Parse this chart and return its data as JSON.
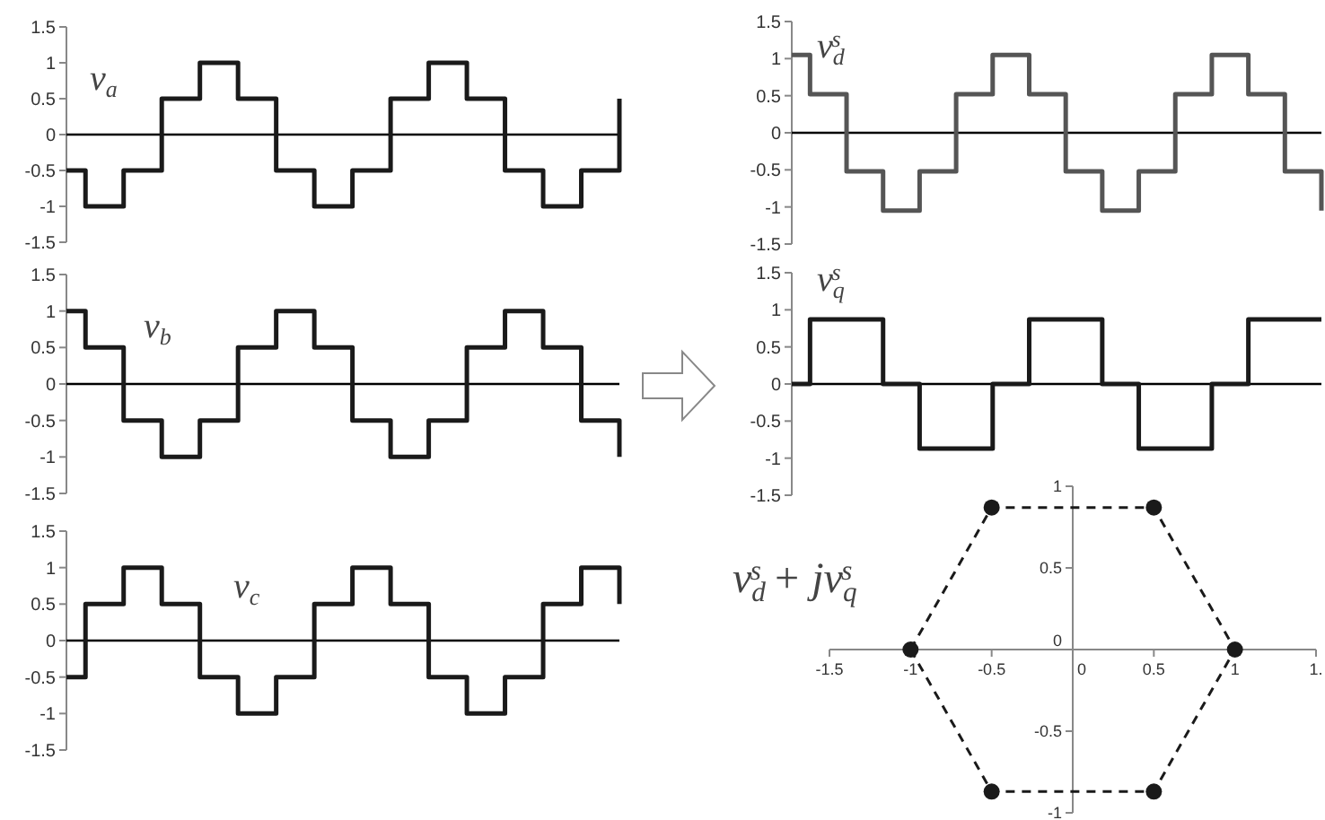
{
  "chart_data": [
    {
      "type": "step",
      "title": "v$_{a}$",
      "tick_labels": "y",
      "ylim": [
        -1.5,
        1.5
      ],
      "yticks": [
        -1.5,
        -1,
        -0.5,
        0,
        0.5,
        1,
        1.5
      ],
      "categories": [
        null,
        null,
        null,
        null,
        null,
        null,
        null,
        null,
        null,
        null,
        null,
        null,
        null,
        null,
        null,
        null,
        null,
        null,
        null,
        null,
        null,
        null,
        null,
        null,
        null,
        null,
        null,
        null,
        null,
        null
      ],
      "series": [
        {
          "color": "#1a1a1a",
          "values": [
            -0.5,
            -1,
            -1,
            -0.5,
            -0.5,
            0.5,
            0.5,
            1,
            1,
            0.5,
            0.5,
            -0.5,
            -0.5,
            -1,
            -1,
            -0.5,
            -0.5,
            0.5,
            0.5,
            1,
            1,
            0.5,
            0.5,
            -0.5,
            -0.5,
            -1,
            -1,
            -0.5,
            -0.5,
            0.5
          ]
        }
      ]
    },
    {
      "type": "step",
      "title": "v$_{b}$",
      "tick_labels": "y",
      "ylim": [
        -1.5,
        1.5
      ],
      "yticks": [
        -1.5,
        -1,
        -0.5,
        0,
        0.5,
        1,
        1.5
      ],
      "categories": [
        null,
        null,
        null,
        null,
        null,
        null,
        null,
        null,
        null,
        null,
        null,
        null,
        null,
        null,
        null,
        null,
        null,
        null,
        null,
        null,
        null,
        null,
        null,
        null,
        null,
        null,
        null,
        null,
        null,
        null
      ],
      "series": [
        {
          "color": "#1a1a1a",
          "values": [
            1,
            0.5,
            0.5,
            -0.5,
            -0.5,
            -1,
            -1,
            -0.5,
            -0.5,
            0.5,
            0.5,
            1,
            1,
            0.5,
            0.5,
            -0.5,
            -0.5,
            -1,
            -1,
            -0.5,
            -0.5,
            0.5,
            0.5,
            1,
            1,
            0.5,
            0.5,
            -0.5,
            -0.5,
            -1
          ]
        }
      ]
    },
    {
      "type": "step",
      "title": "v$_{c}$",
      "tick_labels": "y",
      "ylim": [
        -1.5,
        1.5
      ],
      "yticks": [
        -1.5,
        -1,
        -0.5,
        0,
        0.5,
        1,
        1.5
      ],
      "categories": [
        null,
        null,
        null,
        null,
        null,
        null,
        null,
        null,
        null,
        null,
        null,
        null,
        null,
        null,
        null,
        null,
        null,
        null,
        null,
        null,
        null,
        null,
        null,
        null,
        null,
        null,
        null,
        null,
        null,
        null
      ],
      "series": [
        {
          "color": "#1a1a1a",
          "values": [
            -0.5,
            0.5,
            0.5,
            1,
            1,
            0.5,
            0.5,
            -0.5,
            -0.5,
            -1,
            -1,
            -0.5,
            -0.5,
            0.5,
            0.5,
            1,
            1,
            0.5,
            0.5,
            -0.5,
            -0.5,
            -1,
            -1,
            -0.5,
            -0.5,
            0.5,
            0.5,
            1,
            1,
            0.5
          ]
        }
      ]
    },
    {
      "type": "step",
      "title": "v$_{d}$$^{s}$",
      "tick_labels": "y",
      "ylim": [
        -1.5,
        1.5
      ],
      "yticks": [
        -1.5,
        -1,
        -0.5,
        0,
        0.5,
        1,
        1.5
      ],
      "categories": [
        null,
        null,
        null,
        null,
        null,
        null,
        null,
        null,
        null,
        null,
        null,
        null,
        null,
        null,
        null,
        null,
        null,
        null,
        null,
        null,
        null,
        null,
        null,
        null,
        null,
        null,
        null,
        null,
        null,
        null
      ],
      "series": [
        {
          "color": "#555555",
          "values": [
            1.05,
            0.52,
            0.52,
            -0.52,
            -0.52,
            -1.05,
            -1.05,
            -0.52,
            -0.52,
            0.52,
            0.52,
            1.05,
            1.05,
            0.52,
            0.52,
            -0.52,
            -0.52,
            -1.05,
            -1.05,
            -0.52,
            -0.52,
            0.52,
            0.52,
            1.05,
            1.05,
            0.52,
            0.52,
            -0.52,
            -0.52,
            -1.05
          ]
        }
      ]
    },
    {
      "type": "step",
      "title": "v$_{q}$$^{s}$",
      "tick_labels": "y",
      "ylim": [
        -1.5,
        1.5
      ],
      "yticks": [
        -1.5,
        -1,
        -0.5,
        0,
        0.5,
        1,
        1.5
      ],
      "categories": [
        null,
        null,
        null,
        null,
        null,
        null,
        null,
        null,
        null,
        null,
        null,
        null,
        null,
        null,
        null,
        null,
        null,
        null,
        null,
        null,
        null,
        null,
        null,
        null,
        null,
        null,
        null,
        null,
        null,
        null
      ],
      "series": [
        {
          "color": "#1a1a1a",
          "values": [
            0,
            0.87,
            0.87,
            0.87,
            0.87,
            0,
            0,
            -0.87,
            -0.87,
            -0.87,
            -0.87,
            0,
            0,
            0.87,
            0.87,
            0.87,
            0.87,
            0,
            0,
            -0.87,
            -0.87,
            -0.87,
            -0.87,
            0,
            0,
            0.87,
            0.87,
            0.87,
            0.87,
            0.87
          ]
        }
      ]
    },
    {
      "type": "scatter",
      "title": "v$_{d}$$^{s}$ + jv$_{q}$$^{s}$",
      "marker": "circle",
      "xlim": [
        -1.5,
        1.5
      ],
      "xticks": [
        -1.5,
        -1,
        -0.5,
        0,
        0.5,
        1,
        {
          "value": 1.5,
          "label": "1."
        }
      ],
      "ylim": [
        -1,
        1
      ],
      "yticks": [
        -1,
        -0.5,
        0,
        0.5,
        1
      ],
      "series": [
        {
          "type": "line",
          "line_style": "dashed",
          "marker": "none",
          "color": "#1a1a1a",
          "x": [
            -1,
            -0.5,
            0.5,
            1
          ],
          "values": [
            0,
            0.87,
            0.87,
            0
          ]
        },
        {
          "type": "line",
          "line_style": "dashed",
          "marker": "none",
          "color": "#1a1a1a",
          "x": [
            -1,
            -0.5,
            0.5,
            1
          ],
          "values": [
            0,
            -0.87,
            -0.87,
            0
          ]
        },
        {
          "color": "#1a1a1a",
          "x": [
            1,
            0.5,
            -0.5,
            -1,
            -0.5,
            0.5
          ],
          "values": [
            0,
            0.87,
            0.87,
            0,
            -0.87,
            -0.87
          ]
        }
      ]
    }
  ]
}
